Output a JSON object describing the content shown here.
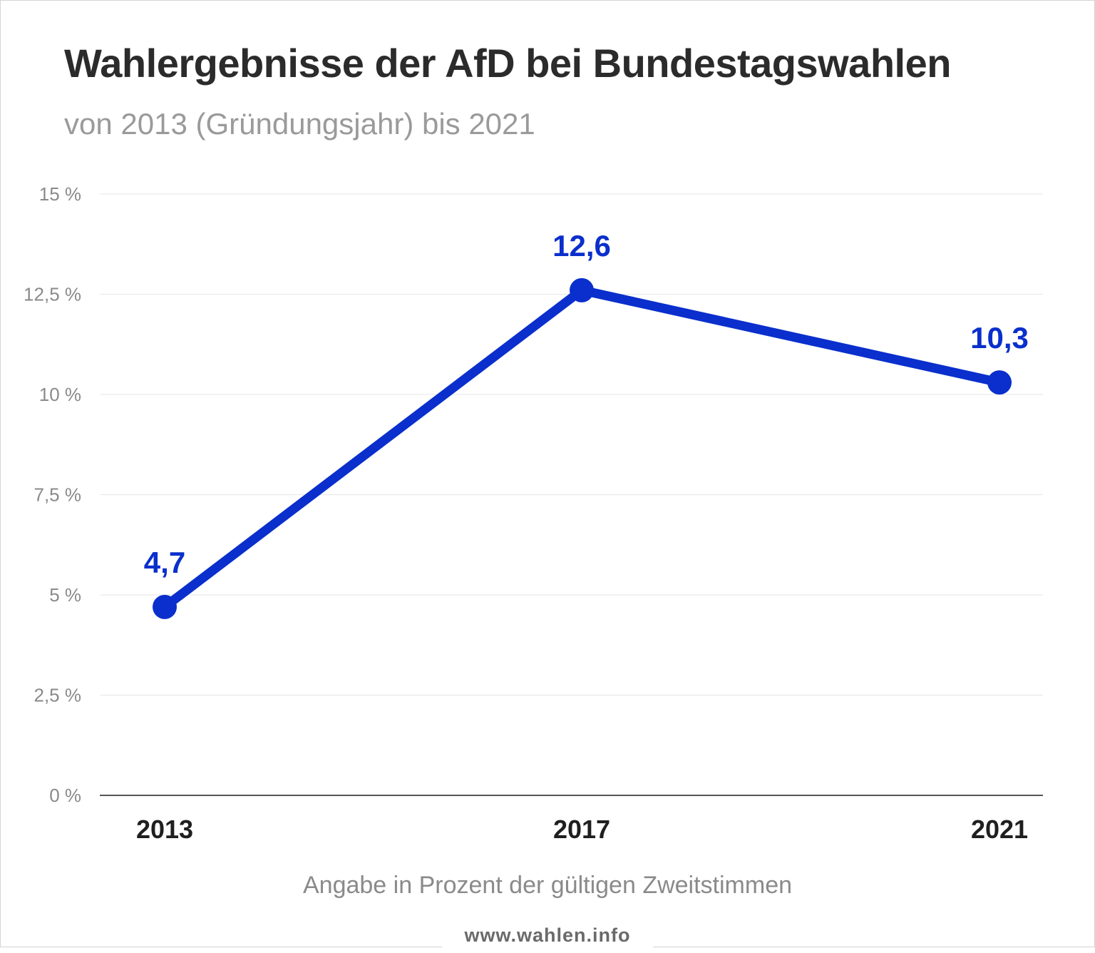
{
  "chart_data": {
    "type": "line",
    "title": "Wahlergebnisse der AfD bei Bundestagswahlen",
    "subtitle": "von 2013 (Gründungsjahr) bis 2021",
    "categories": [
      "2013",
      "2017",
      "2021"
    ],
    "series": [
      {
        "name": "AfD",
        "values": [
          4.7,
          12.6,
          10.3
        ],
        "labels": [
          "4,7",
          "12,6",
          "10,3"
        ]
      }
    ],
    "yticks": [
      0,
      2.5,
      5,
      7.5,
      10,
      12.5,
      15
    ],
    "ytick_labels": [
      "0 %",
      "2,5 %",
      "5 %",
      "7,5 %",
      "10 %",
      "12,5 %",
      "15 %"
    ],
    "ylim": [
      0,
      15
    ],
    "grid": true,
    "xlabel": "",
    "ylabel": "",
    "footnote": "Angabe in Prozent der gültigen Zweitstimmen",
    "source": "www.wahlen.info",
    "line_color": "#0a2fcc",
    "label_color": "#0a2fcc"
  }
}
